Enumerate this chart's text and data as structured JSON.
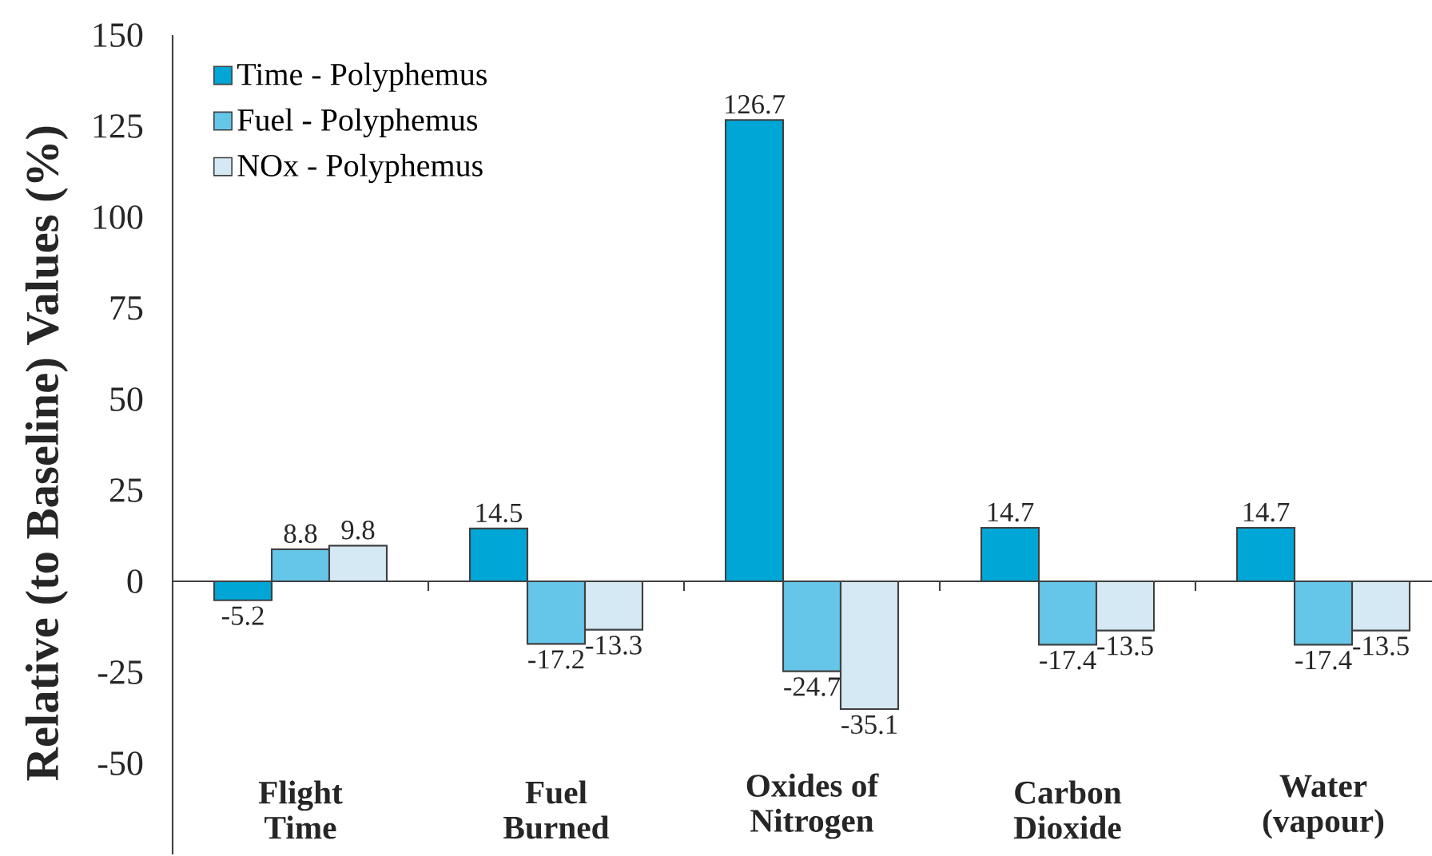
{
  "chart_data": {
    "type": "bar",
    "ylabel": "Relative (to Baseline) Values (%)",
    "categories": [
      "Flight Time",
      "Fuel Burned",
      "Oxides of Nitrogen",
      "Carbon Dioxide",
      "Water (vapour)"
    ],
    "series": [
      {
        "name": "Time - Polyphemus",
        "color": "#00a6d6",
        "values": [
          -5.2,
          14.5,
          126.7,
          14.7,
          14.7
        ]
      },
      {
        "name": "Fuel - Polyphemus",
        "color": "#66c6ea",
        "values": [
          8.8,
          -17.2,
          -24.7,
          -17.4,
          -17.4
        ]
      },
      {
        "name": "NOx - Polyphemus",
        "color": "#d5e9f4",
        "values": [
          9.8,
          -13.3,
          -35.1,
          -13.5,
          -13.5
        ]
      }
    ],
    "ylim": [
      -75,
      150
    ],
    "yticks": [
      -50,
      -25,
      0,
      25,
      50,
      75,
      100,
      125,
      150
    ],
    "legend": "top left",
    "data_labels": true
  }
}
